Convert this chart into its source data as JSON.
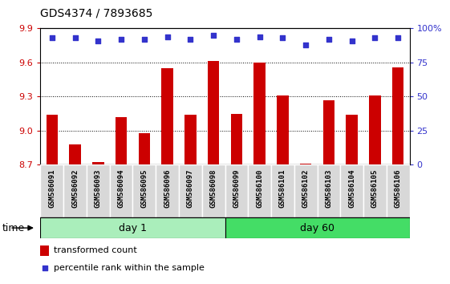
{
  "title": "GDS4374 / 7893685",
  "samples": [
    "GSM586091",
    "GSM586092",
    "GSM586093",
    "GSM586094",
    "GSM586095",
    "GSM586096",
    "GSM586097",
    "GSM586098",
    "GSM586099",
    "GSM586100",
    "GSM586101",
    "GSM586102",
    "GSM586103",
    "GSM586104",
    "GSM586105",
    "GSM586106"
  ],
  "bar_values": [
    9.14,
    8.88,
    8.72,
    9.12,
    8.98,
    9.55,
    9.14,
    9.61,
    9.15,
    9.6,
    9.31,
    8.71,
    9.27,
    9.14,
    9.31,
    9.56
  ],
  "percentile_values": [
    93,
    93,
    91,
    92,
    92,
    94,
    92,
    95,
    92,
    94,
    93,
    88,
    92,
    91,
    93,
    93
  ],
  "ylim": [
    8.7,
    9.9
  ],
  "yticks": [
    8.7,
    9.0,
    9.3,
    9.6,
    9.9
  ],
  "right_yticks": [
    0,
    25,
    50,
    75,
    100
  ],
  "right_ylim": [
    0,
    100
  ],
  "bar_color": "#cc0000",
  "dot_color": "#3333cc",
  "day1_color": "#aaeebb",
  "day60_color": "#44dd66",
  "day1_samples": 8,
  "day60_samples": 8,
  "legend_bar_label": "transformed count",
  "legend_dot_label": "percentile rank within the sample",
  "grid_yticks": [
    9.0,
    9.3,
    9.6
  ],
  "cell_bg_color": "#d8d8d8",
  "cell_edge_color": "#ffffff",
  "background_color": "#ffffff"
}
